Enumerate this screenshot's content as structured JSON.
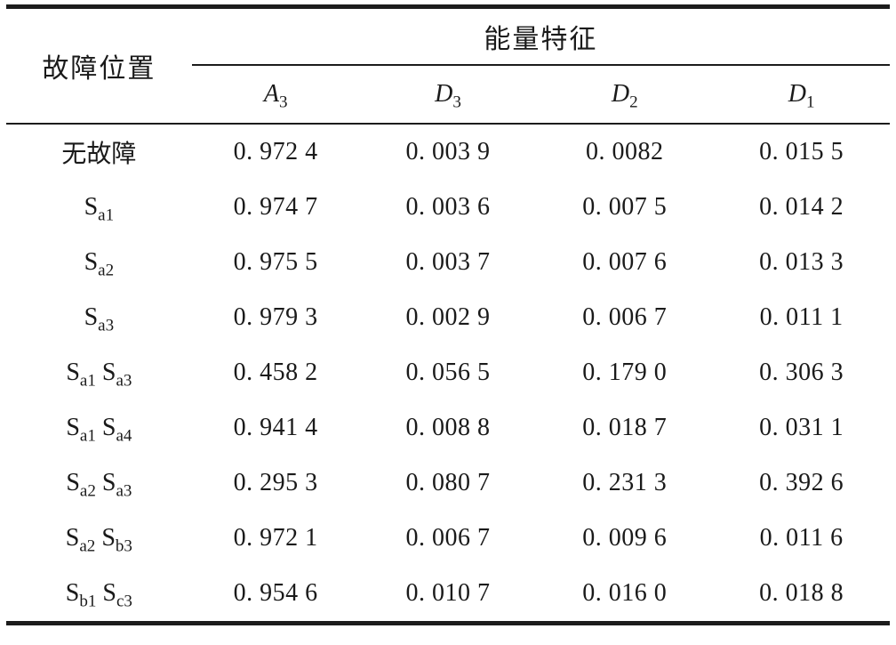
{
  "table": {
    "columns": {
      "fault_location_header": "故障位置",
      "energy_feature_group_header": "能量特征",
      "sub_headers": [
        "A_{3}",
        "D_{3}",
        "D_{2}",
        "D_{1}"
      ]
    },
    "rows": [
      {
        "label": "无故障",
        "values": [
          "0. 972 4",
          "0. 003 9",
          "0. 0082",
          "0. 015 5"
        ]
      },
      {
        "label": "S_{a1}",
        "values": [
          "0. 974 7",
          "0. 003 6",
          "0. 007 5",
          "0. 014 2"
        ]
      },
      {
        "label": "S_{a2}",
        "values": [
          "0. 975 5",
          "0. 003 7",
          "0. 007 6",
          "0. 013 3"
        ]
      },
      {
        "label": "S_{a3}",
        "values": [
          "0. 979 3",
          "0. 002 9",
          "0. 006 7",
          "0. 011 1"
        ]
      },
      {
        "label": "S_{a1} S_{a3}",
        "values": [
          "0. 458 2",
          "0. 056 5",
          "0. 179 0",
          "0. 306 3"
        ]
      },
      {
        "label": "S_{a1} S_{a4}",
        "values": [
          "0. 941 4",
          "0. 008 8",
          "0. 018 7",
          "0. 031 1"
        ]
      },
      {
        "label": "S_{a2} S_{a3}",
        "values": [
          "0. 295 3",
          "0. 080 7",
          "0. 231 3",
          "0. 392 6"
        ]
      },
      {
        "label": "S_{a2} S_{b3}",
        "values": [
          "0. 972 1",
          "0. 006 7",
          "0. 009 6",
          "0. 011 6"
        ]
      },
      {
        "label": "S_{b1} S_{c3}",
        "values": [
          "0. 954 6",
          "0. 010 7",
          "0. 016 0",
          "0. 018 8"
        ]
      }
    ],
    "colors": {
      "rule": "#1c1c1c",
      "text": "#1a1a1a",
      "background": "#ffffff"
    }
  }
}
